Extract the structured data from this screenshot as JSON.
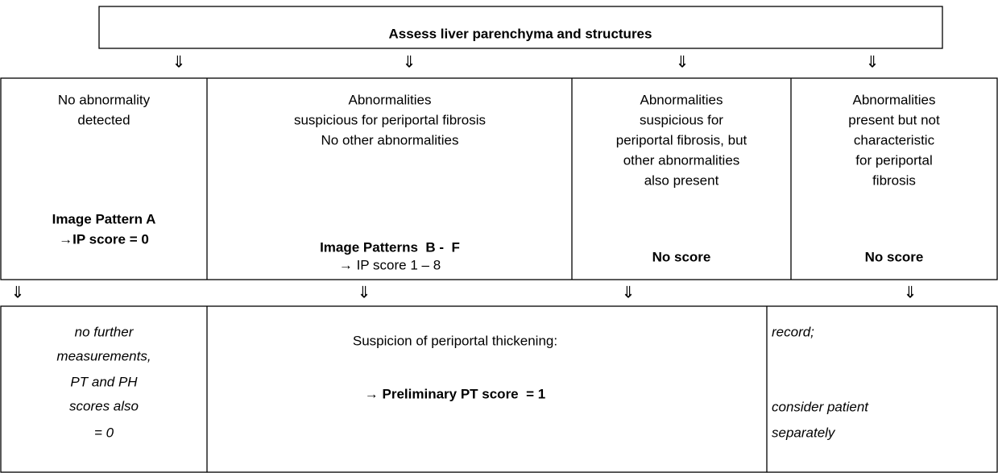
{
  "header": "Assess liver parenchyma and structures",
  "arrow": "⇓",
  "level1": [
    {
      "text": [
        "No abnormality",
        "detected"
      ],
      "result": [
        "Image Pattern A",
        "→IP score = 0"
      ]
    },
    {
      "text": [
        "Abnormalities",
        "suspicious for periportal fibrosis",
        "No other abnormalities"
      ],
      "result": [
        "Image Patterns  B -  F",
        "→ IP score 1 – 8"
      ]
    },
    {
      "text": [
        "Abnormalities",
        "suspicious for",
        "periportal fibrosis, but",
        "other abnormalities",
        "also present"
      ],
      "result": [
        "No score"
      ]
    },
    {
      "text": [
        "Abnormalities",
        "present but not",
        "characteristic",
        "for periportal",
        "fibrosis"
      ],
      "result": [
        "No score"
      ]
    }
  ],
  "level2": [
    {
      "text": [
        "no further",
        "measurements,",
        "PT and PH",
        "scores also",
        "= 0"
      ]
    },
    {
      "text": [
        "Suspicion of periportal thickening:",
        "→ Preliminary PT score  = 1"
      ]
    },
    {
      "text": [
        "record;",
        "consider patient",
        "separately"
      ]
    }
  ]
}
